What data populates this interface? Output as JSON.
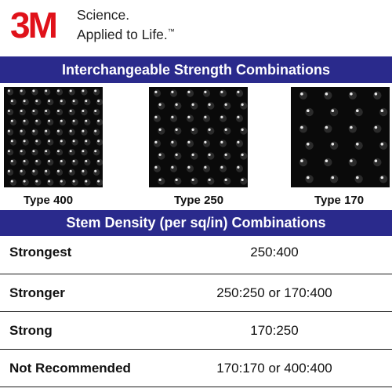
{
  "brand": {
    "logo_text": "3M",
    "logo_color": "#e0121a",
    "tagline_line1": "Science.",
    "tagline_line2": "Applied to Life.",
    "trademark": "™"
  },
  "strength_section": {
    "title": "Interchangeable Strength Combinations",
    "band_color": "#2a2a8c",
    "types": [
      {
        "caption": "Type 400"
      },
      {
        "caption": "Type 250"
      },
      {
        "caption": "Type 170"
      }
    ]
  },
  "density_section": {
    "title": "Stem Density (per sq/in) Combinations",
    "rows": [
      {
        "label": "Strongest",
        "value": "250:400"
      },
      {
        "label": "Stronger",
        "value": "250:250 or 170:400"
      },
      {
        "label": "Strong",
        "value": "170:250"
      },
      {
        "label": "Not Recommended",
        "value": "170:170 or 400:400"
      }
    ]
  }
}
